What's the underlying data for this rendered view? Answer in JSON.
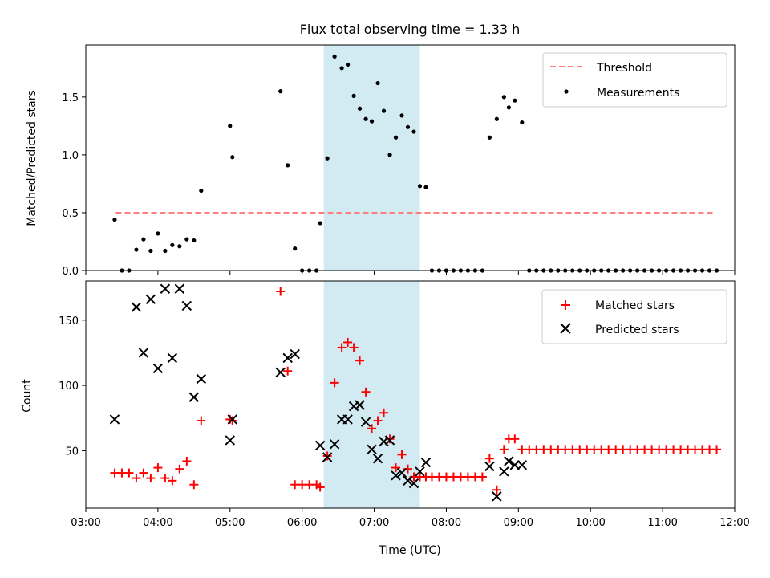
{
  "chart_data": [
    {
      "type": "scatter",
      "title": "Flux total observing time = 1.33 h",
      "xlabel": "",
      "ylabel": "Matched/Predicted stars",
      "xlim": [
        "03:00",
        "12:00"
      ],
      "ylim": [
        0,
        1.95
      ],
      "y_ticks": [
        "0.0",
        "0.5",
        "1.0",
        "1.5"
      ],
      "y_tick_values": [
        0,
        0.5,
        1.0,
        1.5
      ],
      "shaded_interval": [
        "06:18",
        "07:38"
      ],
      "shade_color": "#add8e6",
      "legend": {
        "placement": "top-right"
      },
      "series": [
        {
          "name": "Threshold",
          "kind": "dashed-line",
          "color": "#ff7f7f",
          "points": [
            [
              "03:25",
              0.5
            ],
            [
              "11:43",
              0.5
            ]
          ]
        },
        {
          "name": "Measurements",
          "kind": "dot",
          "color": "#000000",
          "points": [
            [
              "03:24",
              0.44
            ],
            [
              "03:30",
              0
            ],
            [
              "03:36",
              0
            ],
            [
              "03:42",
              0.18
            ],
            [
              "03:48",
              0.27
            ],
            [
              "03:54",
              0.17
            ],
            [
              "04:00",
              0.32
            ],
            [
              "04:06",
              0.17
            ],
            [
              "04:12",
              0.22
            ],
            [
              "04:18",
              0.21
            ],
            [
              "04:24",
              0.27
            ],
            [
              "04:30",
              0.26
            ],
            [
              "04:36",
              0.69
            ],
            [
              "05:00",
              1.25
            ],
            [
              "05:02",
              0.98
            ],
            [
              "05:42",
              1.55
            ],
            [
              "05:48",
              0.91
            ],
            [
              "05:54",
              0.19
            ],
            [
              "06:00",
              0
            ],
            [
              "06:06",
              0
            ],
            [
              "06:12",
              0
            ],
            [
              "06:15",
              0.41
            ],
            [
              "06:21",
              0.97
            ],
            [
              "06:27",
              1.85
            ],
            [
              "06:33",
              1.75
            ],
            [
              "06:38",
              1.78
            ],
            [
              "06:43",
              1.51
            ],
            [
              "06:48",
              1.4
            ],
            [
              "06:53",
              1.31
            ],
            [
              "06:58",
              1.29
            ],
            [
              "07:03",
              1.62
            ],
            [
              "07:08",
              1.38
            ],
            [
              "07:13",
              1.0
            ],
            [
              "07:18",
              1.15
            ],
            [
              "07:23",
              1.34
            ],
            [
              "07:28",
              1.24
            ],
            [
              "07:33",
              1.2
            ],
            [
              "07:38",
              0.73
            ],
            [
              "07:43",
              0.72
            ],
            [
              "07:48",
              0
            ],
            [
              "07:54",
              0
            ],
            [
              "08:00",
              0
            ],
            [
              "08:06",
              0
            ],
            [
              "08:12",
              0
            ],
            [
              "08:18",
              0
            ],
            [
              "08:24",
              0
            ],
            [
              "08:30",
              0
            ],
            [
              "08:36",
              1.15
            ],
            [
              "08:42",
              1.31
            ],
            [
              "08:48",
              1.5
            ],
            [
              "08:52",
              1.41
            ],
            [
              "08:57",
              1.47
            ],
            [
              "09:03",
              1.28
            ],
            [
              "09:09",
              0
            ],
            [
              "09:15",
              0
            ],
            [
              "09:21",
              0
            ],
            [
              "09:27",
              0
            ],
            [
              "09:33",
              0
            ],
            [
              "09:39",
              0
            ],
            [
              "09:45",
              0
            ],
            [
              "09:51",
              0
            ],
            [
              "09:57",
              0
            ],
            [
              "10:03",
              0
            ],
            [
              "10:09",
              0
            ],
            [
              "10:15",
              0
            ],
            [
              "10:21",
              0
            ],
            [
              "10:27",
              0
            ],
            [
              "10:33",
              0
            ],
            [
              "10:39",
              0
            ],
            [
              "10:45",
              0
            ],
            [
              "10:51",
              0
            ],
            [
              "10:57",
              0
            ],
            [
              "11:03",
              0
            ],
            [
              "11:09",
              0
            ],
            [
              "11:15",
              0
            ],
            [
              "11:21",
              0
            ],
            [
              "11:27",
              0
            ],
            [
              "11:33",
              0
            ],
            [
              "11:39",
              0
            ],
            [
              "11:45",
              0
            ]
          ]
        }
      ]
    },
    {
      "type": "scatter",
      "title": "",
      "xlabel": "Time (UTC)",
      "ylabel": "Count",
      "xlim": [
        "03:00",
        "12:00"
      ],
      "ylim": [
        6,
        180
      ],
      "x_ticks": [
        "03:00",
        "04:00",
        "05:00",
        "06:00",
        "07:00",
        "08:00",
        "09:00",
        "10:00",
        "11:00",
        "12:00"
      ],
      "y_ticks": [
        "50",
        "100",
        "150"
      ],
      "y_tick_values": [
        50,
        100,
        150
      ],
      "shaded_interval": [
        "06:18",
        "07:38"
      ],
      "shade_color": "#add8e6",
      "legend": {
        "placement": "top-right"
      },
      "series": [
        {
          "name": "Matched stars",
          "kind": "plus",
          "color": "#ff0000",
          "points": [
            [
              "03:24",
              33
            ],
            [
              "03:30",
              33
            ],
            [
              "03:36",
              33
            ],
            [
              "03:42",
              29
            ],
            [
              "03:48",
              33
            ],
            [
              "03:54",
              29
            ],
            [
              "04:00",
              37
            ],
            [
              "04:06",
              29
            ],
            [
              "04:12",
              27
            ],
            [
              "04:18",
              36
            ],
            [
              "04:24",
              42
            ],
            [
              "04:30",
              24
            ],
            [
              "04:36",
              73
            ],
            [
              "05:00",
              74
            ],
            [
              "05:02",
              73
            ],
            [
              "05:42",
              172
            ],
            [
              "05:48",
              111
            ],
            [
              "05:54",
              24
            ],
            [
              "06:00",
              24
            ],
            [
              "06:06",
              24
            ],
            [
              "06:12",
              24
            ],
            [
              "06:15",
              22
            ],
            [
              "06:21",
              46
            ],
            [
              "06:27",
              102
            ],
            [
              "06:33",
              129
            ],
            [
              "06:38",
              133
            ],
            [
              "06:43",
              129
            ],
            [
              "06:48",
              119
            ],
            [
              "06:53",
              95
            ],
            [
              "06:58",
              67
            ],
            [
              "07:03",
              73
            ],
            [
              "07:08",
              79
            ],
            [
              "07:13",
              59
            ],
            [
              "07:18",
              37
            ],
            [
              "07:23",
              47
            ],
            [
              "07:28",
              36
            ],
            [
              "07:33",
              30
            ],
            [
              "07:38",
              30
            ],
            [
              "07:43",
              30
            ],
            [
              "07:48",
              30
            ],
            [
              "07:54",
              30
            ],
            [
              "08:00",
              30
            ],
            [
              "08:06",
              30
            ],
            [
              "08:12",
              30
            ],
            [
              "08:18",
              30
            ],
            [
              "08:24",
              30
            ],
            [
              "08:30",
              30
            ],
            [
              "08:36",
              44
            ],
            [
              "08:42",
              20
            ],
            [
              "08:48",
              51
            ],
            [
              "08:52",
              59
            ],
            [
              "08:57",
              59
            ],
            [
              "09:03",
              51
            ],
            [
              "09:09",
              51
            ],
            [
              "09:15",
              51
            ],
            [
              "09:21",
              51
            ],
            [
              "09:27",
              51
            ],
            [
              "09:33",
              51
            ],
            [
              "09:39",
              51
            ],
            [
              "09:45",
              51
            ],
            [
              "09:51",
              51
            ],
            [
              "09:57",
              51
            ],
            [
              "10:03",
              51
            ],
            [
              "10:09",
              51
            ],
            [
              "10:15",
              51
            ],
            [
              "10:21",
              51
            ],
            [
              "10:27",
              51
            ],
            [
              "10:33",
              51
            ],
            [
              "10:39",
              51
            ],
            [
              "10:45",
              51
            ],
            [
              "10:51",
              51
            ],
            [
              "10:57",
              51
            ],
            [
              "11:03",
              51
            ],
            [
              "11:09",
              51
            ],
            [
              "11:15",
              51
            ],
            [
              "11:21",
              51
            ],
            [
              "11:27",
              51
            ],
            [
              "11:33",
              51
            ],
            [
              "11:39",
              51
            ],
            [
              "11:45",
              51
            ]
          ]
        },
        {
          "name": "Predicted stars",
          "kind": "cross",
          "color": "#000000",
          "points": [
            [
              "03:24",
              74
            ],
            [
              "03:42",
              160
            ],
            [
              "03:48",
              125
            ],
            [
              "03:54",
              166
            ],
            [
              "04:00",
              113
            ],
            [
              "04:06",
              174
            ],
            [
              "04:12",
              121
            ],
            [
              "04:18",
              174
            ],
            [
              "04:24",
              161
            ],
            [
              "04:30",
              91
            ],
            [
              "04:36",
              105
            ],
            [
              "05:00",
              58
            ],
            [
              "05:02",
              74
            ],
            [
              "05:42",
              110
            ],
            [
              "05:48",
              121
            ],
            [
              "05:54",
              124
            ],
            [
              "06:15",
              54
            ],
            [
              "06:21",
              45
            ],
            [
              "06:27",
              55
            ],
            [
              "06:33",
              74
            ],
            [
              "06:38",
              74
            ],
            [
              "06:43",
              84
            ],
            [
              "06:48",
              85
            ],
            [
              "06:53",
              72
            ],
            [
              "06:58",
              51
            ],
            [
              "07:03",
              44
            ],
            [
              "07:08",
              57
            ],
            [
              "07:13",
              58
            ],
            [
              "07:18",
              31
            ],
            [
              "07:23",
              33
            ],
            [
              "07:28",
              27
            ],
            [
              "07:33",
              25
            ],
            [
              "07:38",
              34
            ],
            [
              "07:43",
              41
            ],
            [
              "08:36",
              38
            ],
            [
              "08:42",
              15
            ],
            [
              "08:48",
              34
            ],
            [
              "08:52",
              42
            ],
            [
              "08:57",
              39
            ],
            [
              "09:03",
              39
            ]
          ]
        }
      ]
    }
  ]
}
